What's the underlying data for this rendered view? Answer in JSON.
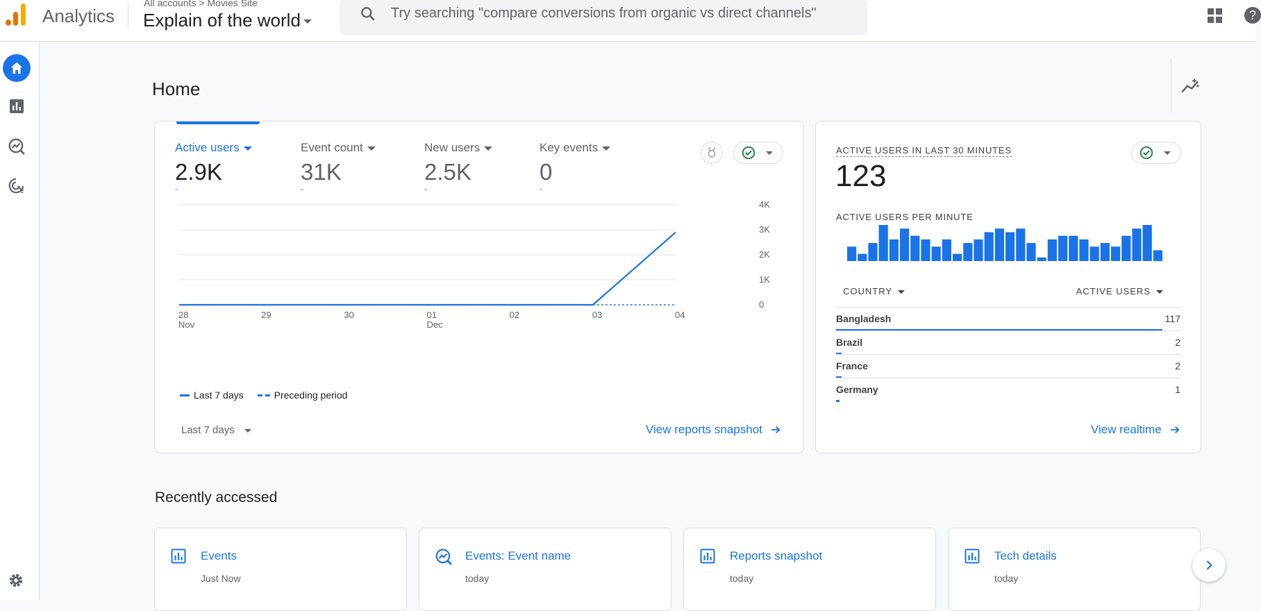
{
  "header": {
    "app_name": "Analytics",
    "breadcrumb_account": "All accounts",
    "breadcrumb_sep": ">",
    "breadcrumb_property": "Movies Site",
    "property_name": "Explain of the world",
    "search_placeholder": "Try searching \"compare conversions from organic vs direct channels\"",
    "help_glyph": "?"
  },
  "nav": {
    "items": [
      {
        "name": "home",
        "icon": "home-icon",
        "active": true
      },
      {
        "name": "reports",
        "icon": "bar-chart-icon",
        "active": false
      },
      {
        "name": "explore",
        "icon": "explore-icon",
        "active": false
      },
      {
        "name": "advertising",
        "icon": "target-icon",
        "active": false
      }
    ],
    "settings_icon": "gear-icon"
  },
  "page": {
    "title": "Home"
  },
  "overview": {
    "metrics": [
      {
        "label": "Active users",
        "value": "2.9K",
        "change": "-",
        "active": true
      },
      {
        "label": "Event count",
        "value": "31K",
        "change": "-",
        "active": false
      },
      {
        "label": "New users",
        "value": "2.5K",
        "change": "-",
        "active": false
      },
      {
        "label": "Key events",
        "value": "0",
        "change": "-",
        "active": false
      }
    ],
    "legend_current": "Last 7 days",
    "legend_previous": "Preceding period",
    "date_range": "Last 7 days",
    "link": "View reports snapshot"
  },
  "chart_data": {
    "type": "line",
    "x": [
      "28 Nov",
      "29",
      "30",
      "01 Dec",
      "02",
      "03",
      "04"
    ],
    "x_tick_labels": [
      {
        "top": "28",
        "bottom": "Nov"
      },
      {
        "top": "29",
        "bottom": ""
      },
      {
        "top": "30",
        "bottom": ""
      },
      {
        "top": "01",
        "bottom": "Dec"
      },
      {
        "top": "02",
        "bottom": ""
      },
      {
        "top": "03",
        "bottom": ""
      },
      {
        "top": "04",
        "bottom": ""
      }
    ],
    "y_ticks": [
      "0",
      "1K",
      "2K",
      "3K",
      "4K"
    ],
    "ylim": [
      0,
      4000
    ],
    "series": [
      {
        "name": "Last 7 days",
        "values": [
          0,
          0,
          0,
          0,
          0,
          0,
          2900
        ],
        "style": "solid"
      },
      {
        "name": "Preceding period",
        "values": [
          null,
          null,
          null,
          null,
          null,
          0,
          0
        ],
        "style": "dashed"
      }
    ],
    "color": "#1a73e8",
    "grid": true
  },
  "realtime": {
    "label": "ACTIVE USERS IN LAST 30 MINUTES",
    "value": "123",
    "per_minute_label": "ACTIVE USERS PER MINUTE",
    "per_minute": [
      4,
      2,
      5,
      10,
      6,
      9,
      7,
      6,
      4,
      6,
      2,
      5,
      6,
      8,
      9,
      8,
      9,
      5,
      1,
      6,
      7,
      7,
      6,
      4,
      5,
      4,
      7,
      9,
      10,
      3
    ],
    "col_country": "COUNTRY",
    "col_users": "ACTIVE USERS",
    "rows": [
      {
        "country": "Bangladesh",
        "users": 117
      },
      {
        "country": "Brazil",
        "users": 2
      },
      {
        "country": "France",
        "users": 2
      },
      {
        "country": "Germany",
        "users": 1
      }
    ],
    "link": "View realtime"
  },
  "recent": {
    "title": "Recently accessed",
    "items": [
      {
        "title": "Events",
        "time": "Just Now",
        "icon": "bar-chart-icon"
      },
      {
        "title": "Events: Event name",
        "time": "today",
        "icon": "explore-icon"
      },
      {
        "title": "Reports snapshot",
        "time": "today",
        "icon": "bar-chart-icon"
      },
      {
        "title": "Tech details",
        "time": "today",
        "icon": "bar-chart-icon"
      }
    ]
  },
  "colors": {
    "accent": "#1a73e8",
    "logo_orange": "#e37400",
    "logo_yellow": "#f9ab00",
    "check_green": "#188038"
  }
}
